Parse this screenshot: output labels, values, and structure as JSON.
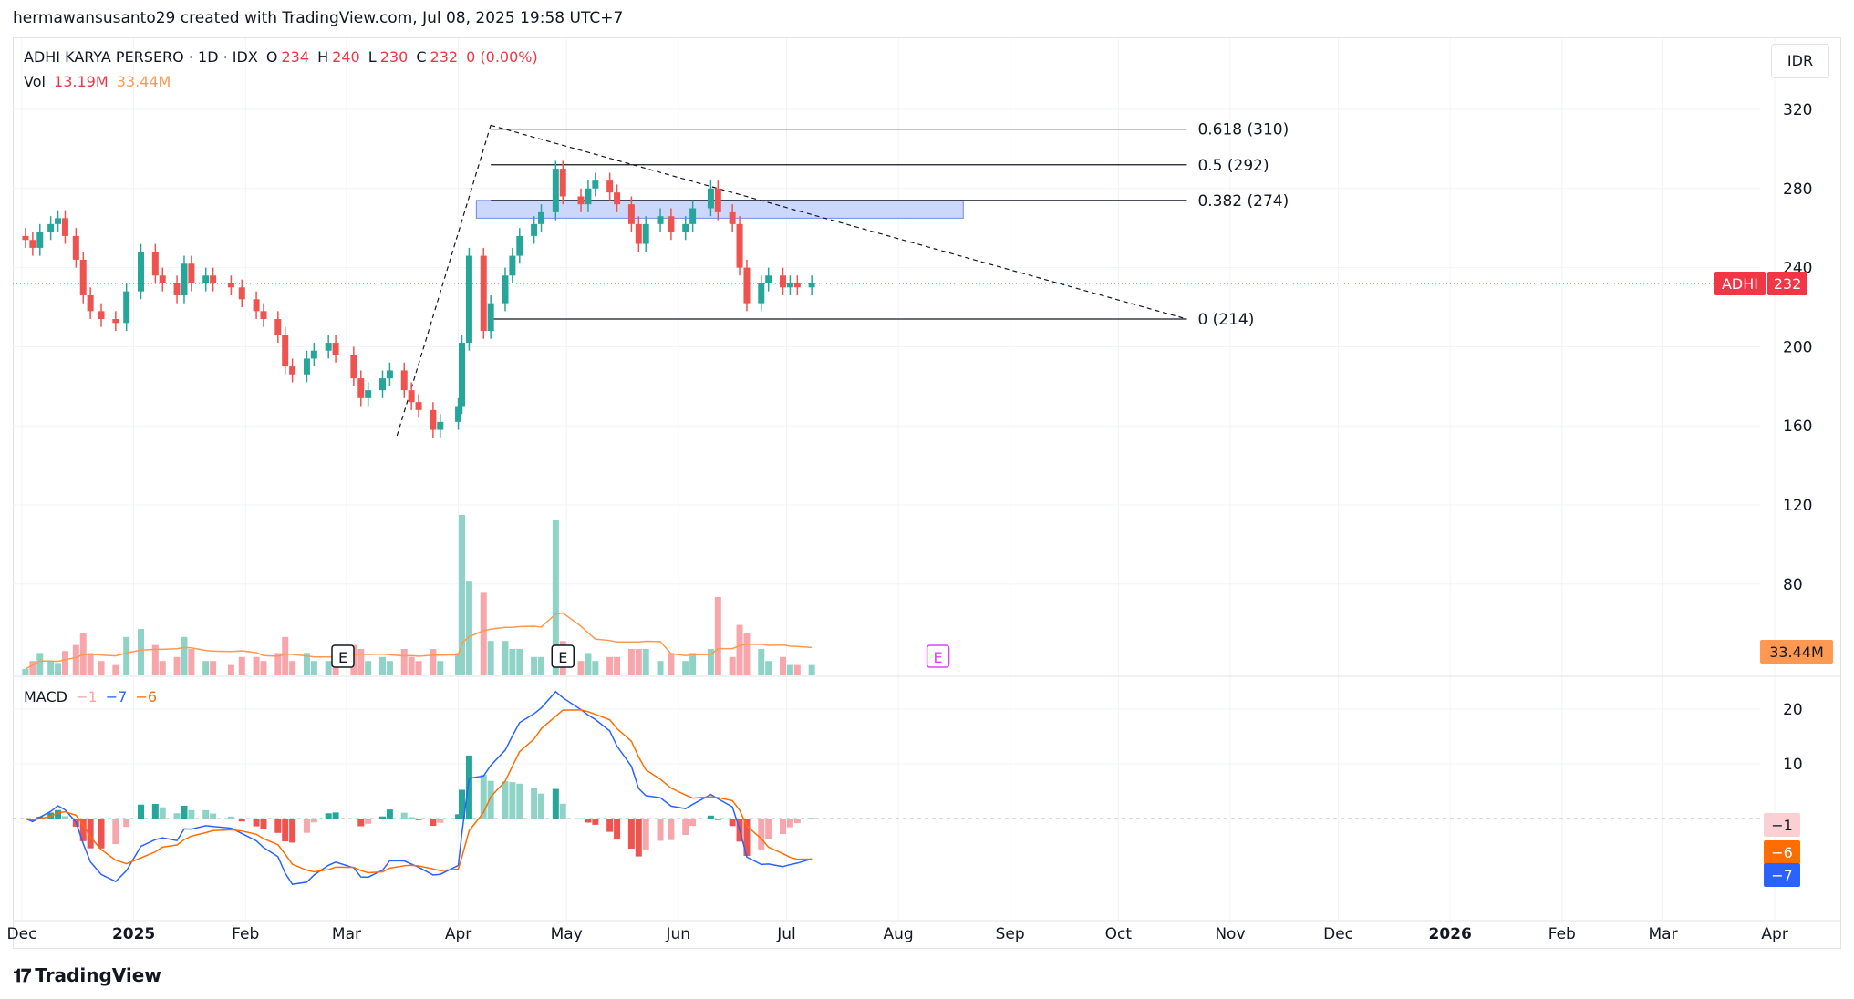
{
  "header": {
    "attribution": "hermawansusanto29 created with TradingView.com, Jul 08, 2025 19:58 UTC+7"
  },
  "legend": {
    "symbol": "ADHI KARYA PERSERO · 1D · IDX",
    "o_label": "O",
    "o_value": "234",
    "h_label": "H",
    "h_value": "240",
    "l_label": "L",
    "l_value": "230",
    "c_label": "C",
    "c_value": "232",
    "change": "0 (0.00%)",
    "vol_label": "Vol",
    "vol_value": "13.19M",
    "vol_ma": "33.44M",
    "macd_label": "MACD",
    "macd_hist": "−1",
    "macd_line": "−7",
    "macd_signal": "−6"
  },
  "currency": "IDR",
  "footer": {
    "brand": "TradingView"
  },
  "colors": {
    "up": "#26a69a",
    "down": "#ef5350",
    "vol_up": "#8fd3c7",
    "vol_down": "#f7a7ab",
    "vol_ma": "#ff9850",
    "macd": "#2962ff",
    "signal": "#ff6d00",
    "fib_zone": "#c7d4fb",
    "price_label": "#f23645"
  },
  "chart_data": [
    {
      "type": "candlestick",
      "symbol": "ADHI",
      "y_axis_ticks": [
        80,
        120,
        160,
        200,
        240,
        280,
        320
      ],
      "x_axis_ticks": [
        "Dec",
        "2025",
        "Feb",
        "Mar",
        "Apr",
        "May",
        "Jun",
        "Jul",
        "Aug",
        "Sep",
        "Oct",
        "Nov",
        "Dec",
        "2026",
        "Feb",
        "Mar",
        "Apr"
      ],
      "last_price": 232,
      "last_price_label": "ADHI",
      "last_price_value": "232",
      "close_series": [
        {
          "date": "2024-12-02",
          "close": 254
        },
        {
          "date": "2024-12-04",
          "close": 250
        },
        {
          "date": "2024-12-06",
          "close": 258
        },
        {
          "date": "2024-12-09",
          "close": 262
        },
        {
          "date": "2024-12-11",
          "close": 265
        },
        {
          "date": "2024-12-13",
          "close": 256
        },
        {
          "date": "2024-12-16",
          "close": 244
        },
        {
          "date": "2024-12-18",
          "close": 226
        },
        {
          "date": "2024-12-20",
          "close": 218
        },
        {
          "date": "2024-12-23",
          "close": 214
        },
        {
          "date": "2024-12-27",
          "close": 212
        },
        {
          "date": "2024-12-30",
          "close": 228
        },
        {
          "date": "2025-01-03",
          "close": 248
        },
        {
          "date": "2025-01-07",
          "close": 236
        },
        {
          "date": "2025-01-09",
          "close": 232
        },
        {
          "date": "2025-01-13",
          "close": 226
        },
        {
          "date": "2025-01-15",
          "close": 242
        },
        {
          "date": "2025-01-17",
          "close": 232
        },
        {
          "date": "2025-01-21",
          "close": 236
        },
        {
          "date": "2025-01-23",
          "close": 232
        },
        {
          "date": "2025-01-28",
          "close": 230
        },
        {
          "date": "2025-01-31",
          "close": 224
        },
        {
          "date": "2025-02-04",
          "close": 218
        },
        {
          "date": "2025-02-06",
          "close": 214
        },
        {
          "date": "2025-02-10",
          "close": 206
        },
        {
          "date": "2025-02-12",
          "close": 190
        },
        {
          "date": "2025-02-14",
          "close": 186
        },
        {
          "date": "2025-02-18",
          "close": 194
        },
        {
          "date": "2025-02-20",
          "close": 198
        },
        {
          "date": "2025-02-24",
          "close": 202
        },
        {
          "date": "2025-02-26",
          "close": 196
        },
        {
          "date": "2025-03-03",
          "close": 184
        },
        {
          "date": "2025-03-05",
          "close": 174
        },
        {
          "date": "2025-03-07",
          "close": 178
        },
        {
          "date": "2025-03-11",
          "close": 184
        },
        {
          "date": "2025-03-13",
          "close": 188
        },
        {
          "date": "2025-03-17",
          "close": 178
        },
        {
          "date": "2025-03-19",
          "close": 172
        },
        {
          "date": "2025-03-21",
          "close": 168
        },
        {
          "date": "2025-03-25",
          "close": 158
        },
        {
          "date": "2025-03-27",
          "close": 162
        },
        {
          "date": "2025-04-01",
          "close": 170
        },
        {
          "date": "2025-04-02",
          "close": 202
        },
        {
          "date": "2025-04-04",
          "close": 246
        },
        {
          "date": "2025-04-08",
          "close": 208
        },
        {
          "date": "2025-04-10",
          "close": 222
        },
        {
          "date": "2025-04-14",
          "close": 236
        },
        {
          "date": "2025-04-16",
          "close": 246
        },
        {
          "date": "2025-04-18",
          "close": 256
        },
        {
          "date": "2025-04-22",
          "close": 262
        },
        {
          "date": "2025-04-24",
          "close": 268
        },
        {
          "date": "2025-04-28",
          "close": 290
        },
        {
          "date": "2025-04-30",
          "close": 276
        },
        {
          "date": "2025-05-05",
          "close": 272
        },
        {
          "date": "2025-05-07",
          "close": 280
        },
        {
          "date": "2025-05-09",
          "close": 284
        },
        {
          "date": "2025-05-13",
          "close": 278
        },
        {
          "date": "2025-05-15",
          "close": 272
        },
        {
          "date": "2025-05-19",
          "close": 262
        },
        {
          "date": "2025-05-21",
          "close": 252
        },
        {
          "date": "2025-05-23",
          "close": 262
        },
        {
          "date": "2025-05-27",
          "close": 266
        },
        {
          "date": "2025-05-30",
          "close": 258
        },
        {
          "date": "2025-06-03",
          "close": 262
        },
        {
          "date": "2025-06-05",
          "close": 270
        },
        {
          "date": "2025-06-10",
          "close": 280
        },
        {
          "date": "2025-06-12",
          "close": 268
        },
        {
          "date": "2025-06-16",
          "close": 262
        },
        {
          "date": "2025-06-18",
          "close": 240
        },
        {
          "date": "2025-06-20",
          "close": 222
        },
        {
          "date": "2025-06-24",
          "close": 232
        },
        {
          "date": "2025-06-26",
          "close": 236
        },
        {
          "date": "2025-06-30",
          "close": 230
        },
        {
          "date": "2025-07-02",
          "close": 232
        },
        {
          "date": "2025-07-04",
          "close": 230
        },
        {
          "date": "2025-07-08",
          "close": 232
        }
      ],
      "fibonacci": [
        {
          "label": "0.618 (310)",
          "value": 310
        },
        {
          "label": "0.5 (292)",
          "value": 292
        },
        {
          "label": "0.382 (274)",
          "value": 274
        },
        {
          "label": "0 (214)",
          "value": 214
        }
      ],
      "zone": {
        "low": 265,
        "high": 274
      }
    },
    {
      "type": "bar",
      "name": "Vol",
      "axis_label": "33.44M",
      "earnings_markers": [
        "E",
        "E",
        "E"
      ]
    },
    {
      "type": "line",
      "name": "MACD",
      "y_axis_ticks": [
        10,
        20
      ],
      "axis_labels": [
        "−1",
        "−6",
        "−7"
      ]
    }
  ]
}
